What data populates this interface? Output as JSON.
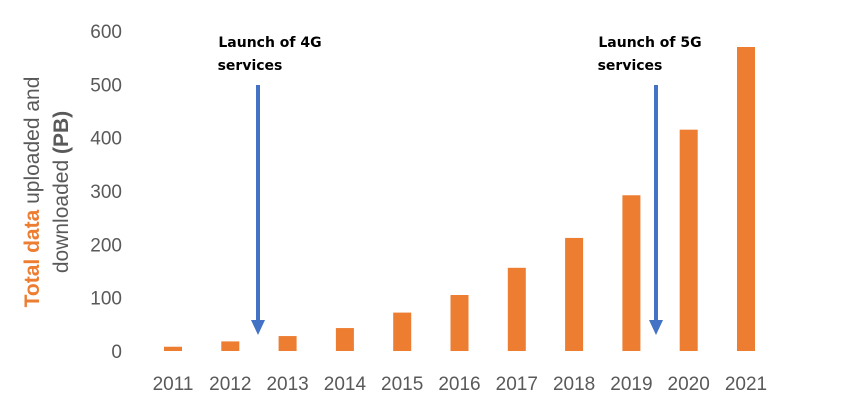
{
  "chart_data": {
    "type": "bar",
    "categories": [
      "2011",
      "2012",
      "2013",
      "2014",
      "2015",
      "2016",
      "2017",
      "2018",
      "2019",
      "2020",
      "2021"
    ],
    "values": [
      8,
      18,
      28,
      43,
      72,
      105,
      156,
      212,
      292,
      415,
      570
    ],
    "ylim": [
      0,
      600
    ],
    "yticks": [
      0,
      100,
      200,
      300,
      400,
      500,
      600
    ],
    "grid": false,
    "ylabel": {
      "part1": "Total data",
      "part2": " uploaded and",
      "part3": "downloaded ",
      "part4": "(PB)"
    },
    "annotations": [
      {
        "line1": "Launch of 4G",
        "line2": "services",
        "x_position": "between 2012 and 2013"
      },
      {
        "line1": "Launch of 5G",
        "line2": "services",
        "x_position": "between 2019 and 2020"
      }
    ],
    "colors": {
      "bars": "#ED7D31",
      "arrows": "#4472C4",
      "axis_text": "#595959"
    }
  }
}
